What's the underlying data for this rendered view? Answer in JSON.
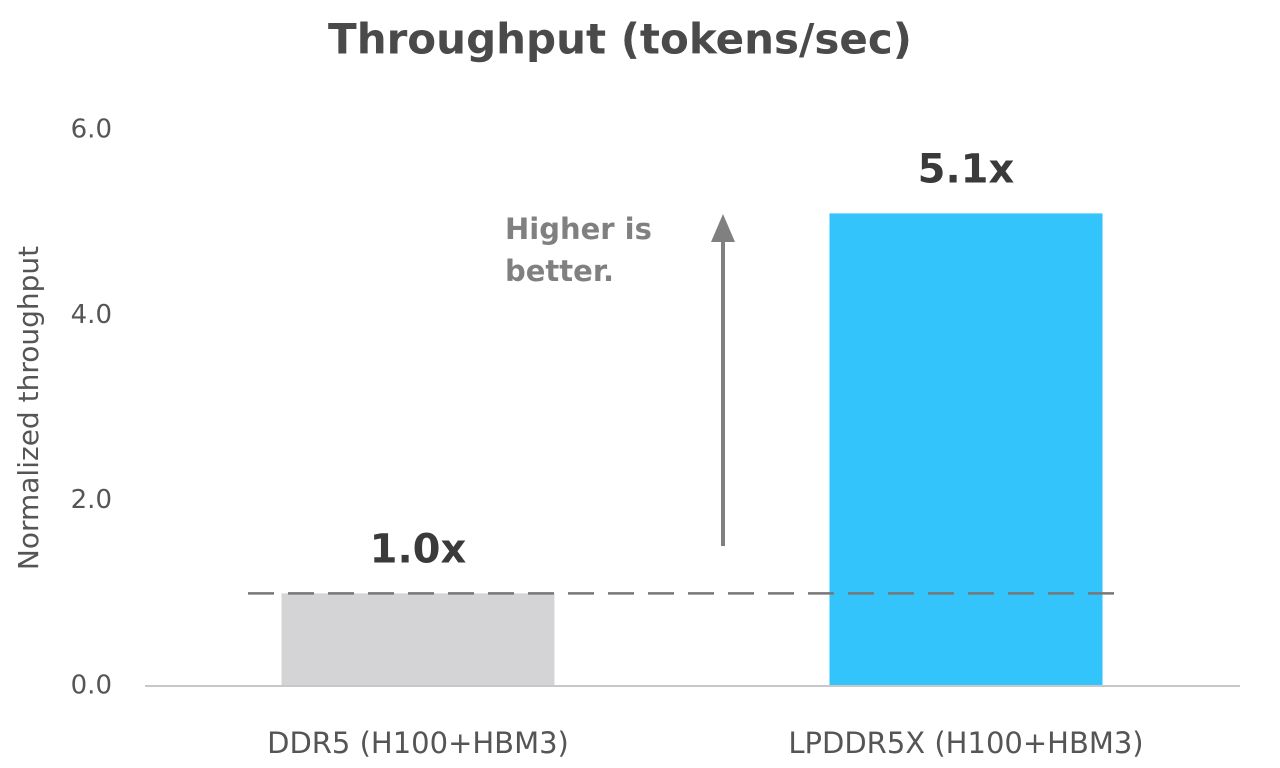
{
  "chart_data": {
    "type": "bar",
    "title": "Throughput (tokens/sec)",
    "y_label": "Normalized throughput",
    "categories": [
      "DDR5 (H100+HBM3)",
      "LPDDR5X (H100+HBM3)"
    ],
    "values": [
      1.0,
      5.1
    ],
    "value_labels": [
      "1.0x",
      "5.1x"
    ],
    "colors": [
      "#d4d4d6",
      "#33c4fc"
    ],
    "ylim": [
      0,
      6
    ],
    "yticks": [
      {
        "value": 0,
        "label": "0.0"
      },
      {
        "value": 2,
        "label": "2.0"
      },
      {
        "value": 4,
        "label": "4.0"
      },
      {
        "value": 6,
        "label": "6.0"
      }
    ],
    "grid": false,
    "reference_line": 1.0,
    "annotation": "Higher is better."
  }
}
